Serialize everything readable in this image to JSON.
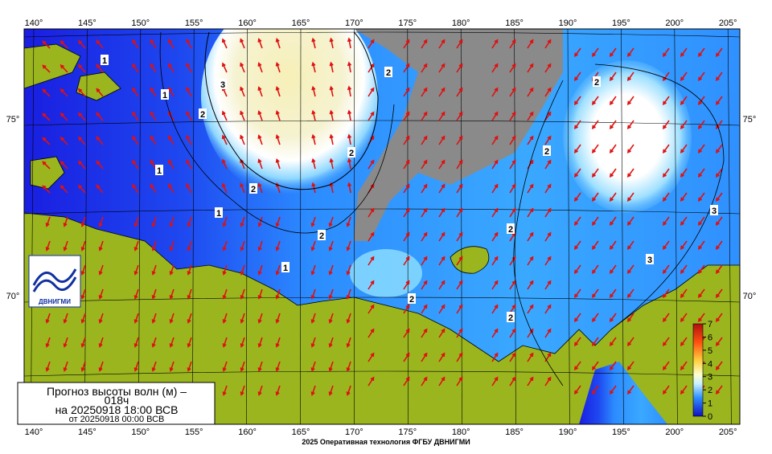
{
  "map": {
    "lon_labels_top": [
      "140°",
      "145°",
      "150°",
      "155°",
      "160°",
      "165°",
      "170°",
      "175°",
      "180°",
      "185°",
      "190°",
      "195°",
      "200°",
      "205°"
    ],
    "lon_labels_bottom": [
      "140°",
      "145°",
      "150°",
      "155°",
      "160°",
      "165°",
      "170°",
      "175°",
      "180°",
      "185°",
      "190°",
      "195°",
      "200°",
      "205°"
    ],
    "lat_labels_left": [
      "75°",
      "70°"
    ],
    "lat_labels_right": [
      "75°",
      "70°"
    ],
    "contour_labels": [
      "1",
      "1",
      "1",
      "1",
      "1",
      "2",
      "2",
      "2",
      "2",
      "2",
      "2",
      "2",
      "2",
      "2",
      "2",
      "3",
      "3",
      "3"
    ],
    "colorbar": {
      "ticks": [
        "0",
        "1",
        "2",
        "3",
        "4",
        "5",
        "6",
        "7"
      ]
    },
    "legend_box": {
      "line1": "Прогноз высоты волн (м) –",
      "line2": "018ч",
      "line3": "на 20250918 18:00 ВСВ",
      "line4": "от 20250918 00:00 ВСВ"
    },
    "logo": "ДВНИГМИ",
    "footer": "2025 Оперативная технология ФГБУ ДВНИГМИ"
  }
}
